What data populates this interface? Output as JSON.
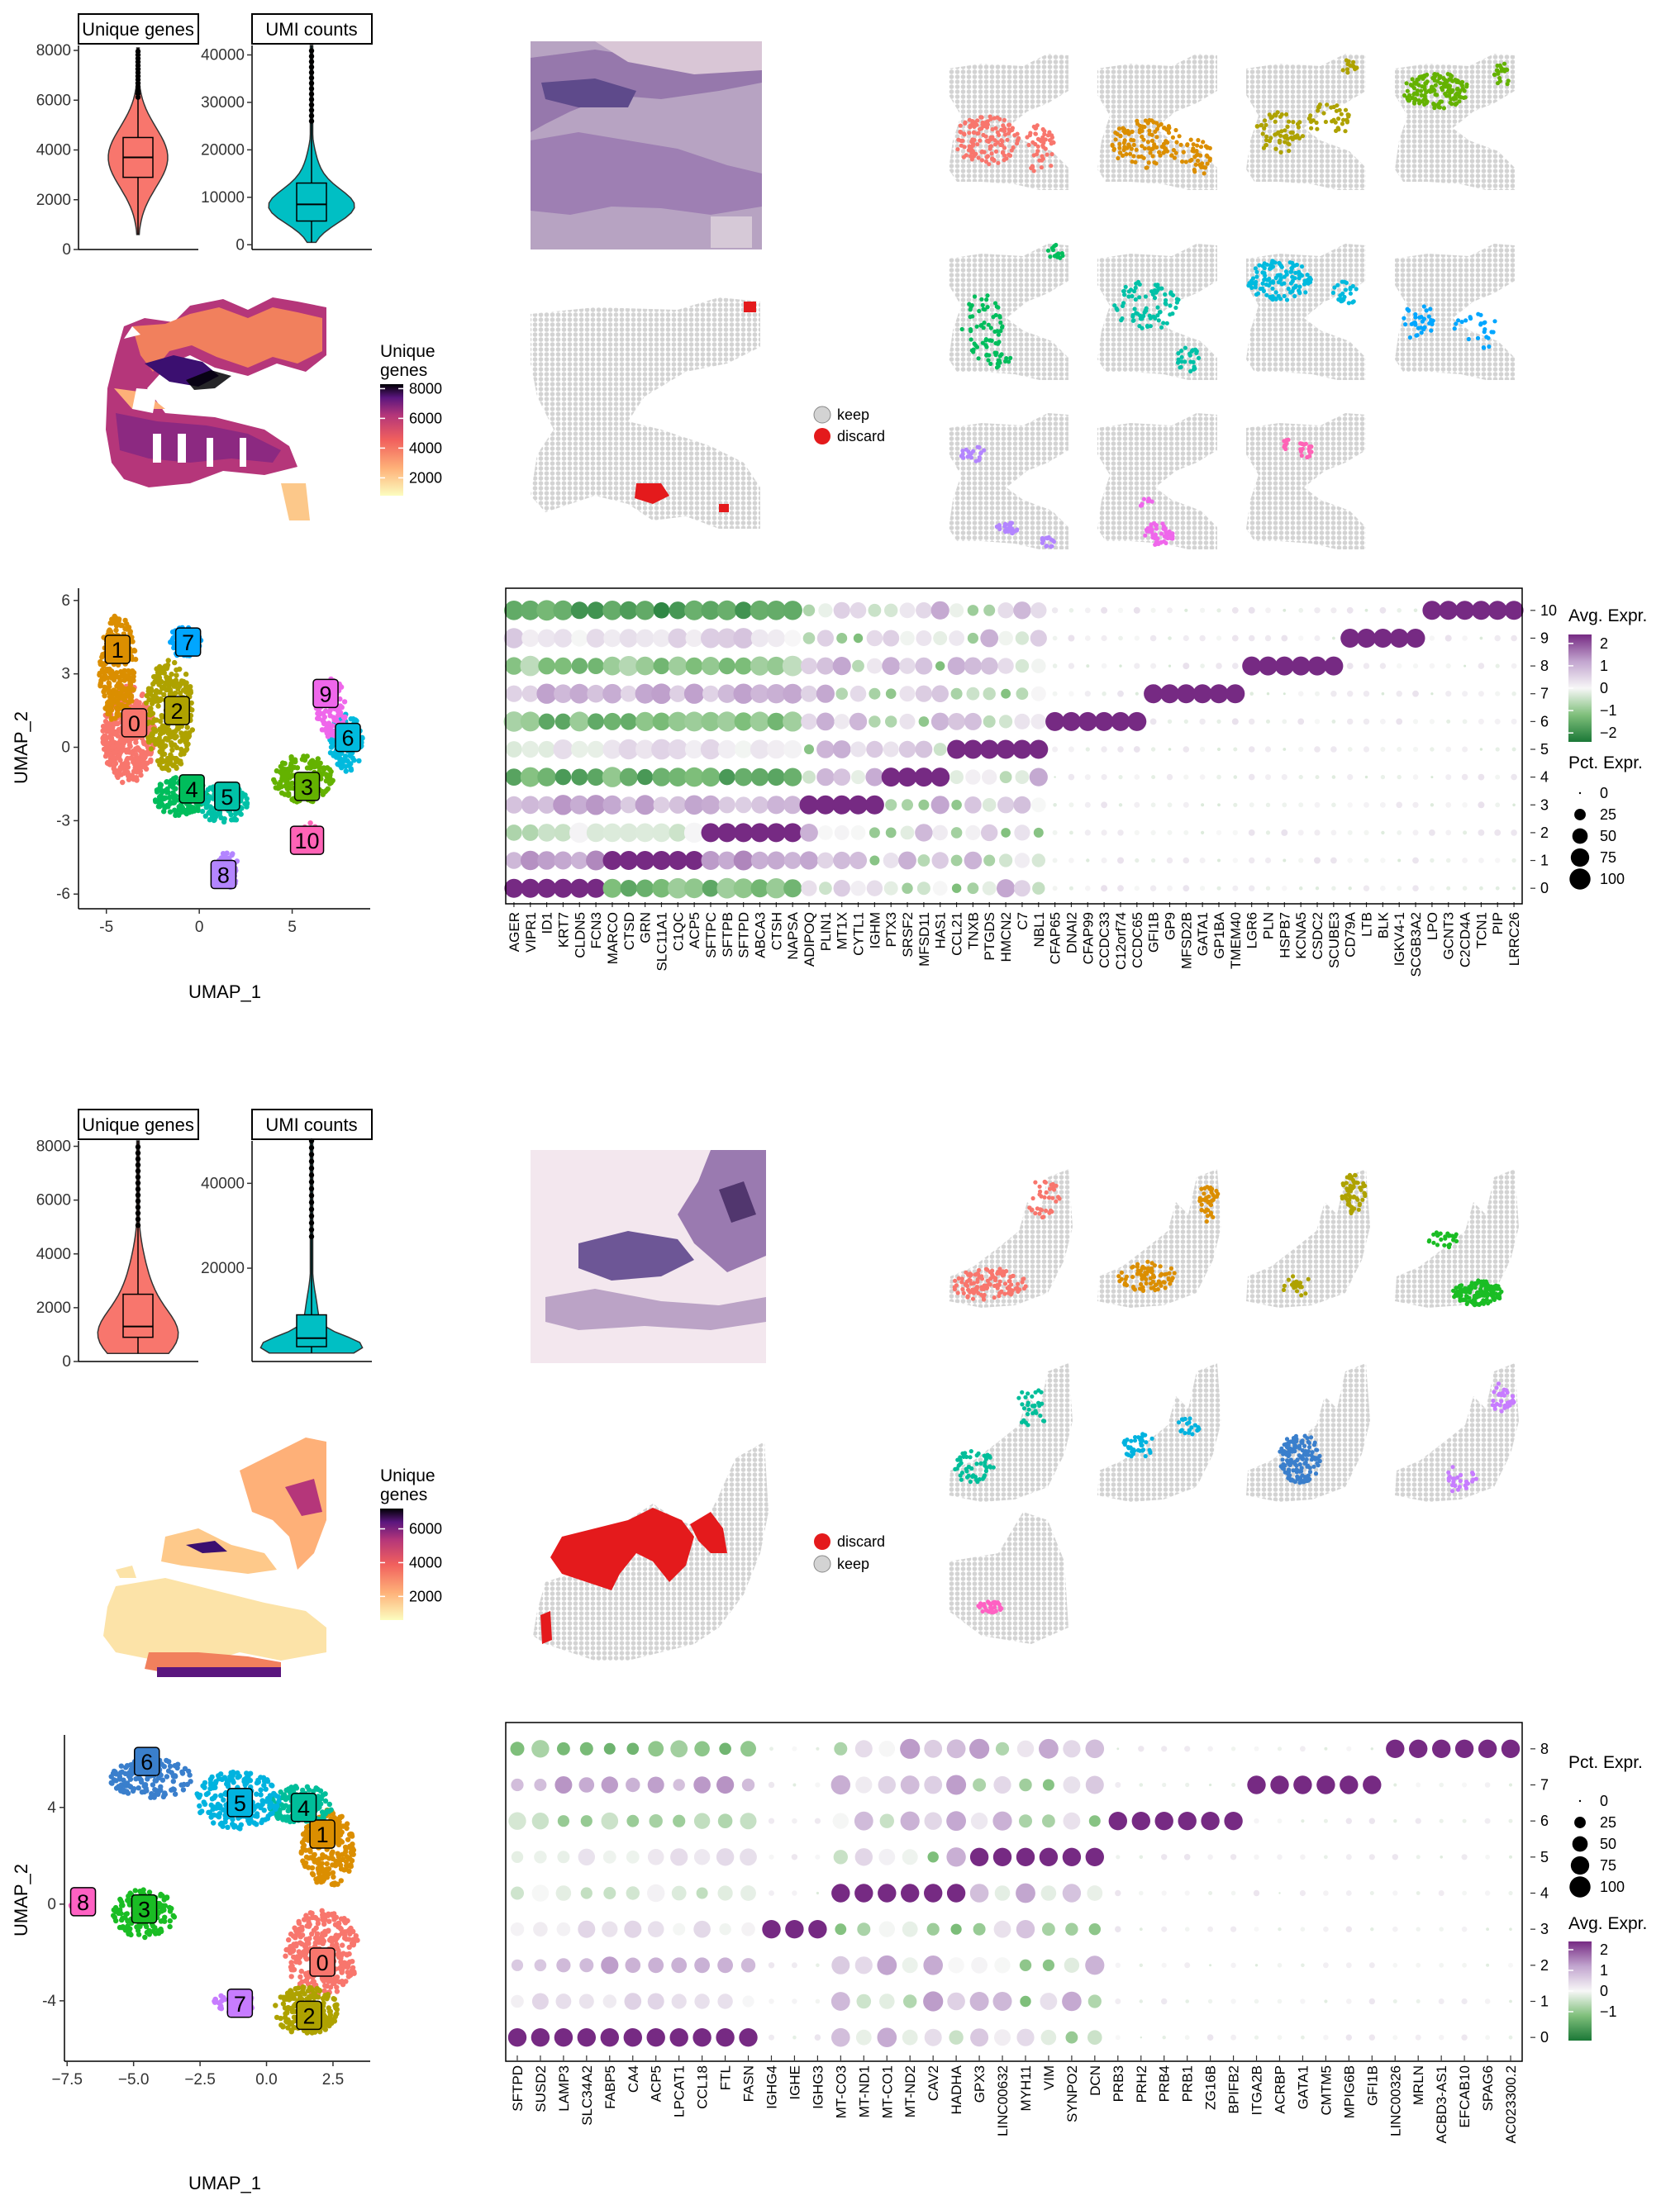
{
  "colors": {
    "cluster": [
      "#F8766D",
      "#DB8E00",
      "#AEA200",
      "#64B200",
      "#00BD5C",
      "#00C1A7",
      "#00BADE",
      "#00A6FF",
      "#B385FF",
      "#EF67EB",
      "#FF63B6"
    ],
    "cluster_b": [
      "#F8766D",
      "#DB8E00",
      "#AEA200",
      "#1ABD24",
      "#00BE9A",
      "#00B3DF",
      "#3A7FCC",
      "#C77CFF",
      "#FF61C3"
    ],
    "keep": "#D3D3D3",
    "discard": "#E41A1C"
  },
  "chart_data": [
    {
      "id": "A_violin",
      "type": "violin",
      "facets": [
        {
          "title": "Unique genes",
          "yticks": [
            0,
            2000,
            4000,
            6000,
            8000
          ],
          "ylim": [
            0,
            8200
          ],
          "median": 3700,
          "q1": 2900,
          "q3": 4500,
          "whisker": [
            600,
            8100
          ],
          "color": "#F8766D"
        },
        {
          "title": "UMI counts",
          "yticks": [
            0,
            10000,
            20000,
            30000,
            40000
          ],
          "ylim": [
            -1000,
            42000
          ],
          "median": 8500,
          "q1": 5000,
          "q3": 13000,
          "whisker": [
            500,
            42000
          ],
          "color": "#00BFC4"
        }
      ]
    },
    {
      "id": "A_spatial_genes",
      "type": "heatmap",
      "legend_title": [
        "Unique",
        "genes"
      ],
      "legend_ticks": [
        2000,
        4000,
        6000,
        8000
      ],
      "legend_range": [
        800,
        8300
      ]
    },
    {
      "id": "A_qc",
      "type": "scatter",
      "legend": [
        {
          "label": "keep",
          "color": "#D3D3D3"
        },
        {
          "label": "discard",
          "color": "#E41A1C"
        }
      ]
    },
    {
      "id": "A_umap",
      "type": "scatter",
      "xlabel": "UMAP_1",
      "ylabel": "UMAP_2",
      "xticks": [
        -5,
        0,
        5
      ],
      "yticks": [
        -6,
        -3,
        0,
        3,
        6
      ],
      "xlim": [
        -6.5,
        9.2
      ],
      "ylim": [
        -6.6,
        6.5
      ],
      "clusters": [
        {
          "id": "0",
          "x": -3.5,
          "y": 1.0
        },
        {
          "id": "1",
          "x": -4.4,
          "y": 4.0
        },
        {
          "id": "2",
          "x": -1.2,
          "y": 1.5
        },
        {
          "id": "3",
          "x": 5.8,
          "y": -1.6
        },
        {
          "id": "4",
          "x": -0.4,
          "y": -1.7
        },
        {
          "id": "5",
          "x": 1.5,
          "y": -2.0
        },
        {
          "id": "6",
          "x": 8.0,
          "y": 0.4
        },
        {
          "id": "7",
          "x": -0.6,
          "y": 4.3
        },
        {
          "id": "8",
          "x": 1.3,
          "y": -5.2
        },
        {
          "id": "9",
          "x": 6.8,
          "y": 2.2
        },
        {
          "id": "10",
          "x": 5.8,
          "y": -3.8
        }
      ]
    },
    {
      "id": "A_dotplot",
      "type": "dotplot",
      "genes": [
        "AGER",
        "VIPR1",
        "ID1",
        "KRT7",
        "CLDN5",
        "FCN3",
        "MARCO",
        "CTSD",
        "GRN",
        "SLC11A1",
        "C1QC",
        "ACP5",
        "SFTPC",
        "SFTPB",
        "SFTPD",
        "ABCA3",
        "CTSH",
        "NAPSA",
        "ADIPOQ",
        "PLIN1",
        "MT1X",
        "CYTL1",
        "IGHM",
        "PTX3",
        "SRSF2",
        "MFSD11",
        "HAS1",
        "CCL21",
        "TNXB",
        "PTGDS",
        "HMCN2",
        "C7",
        "NBL1",
        "CFAP65",
        "DNAI2",
        "CFAP99",
        "CCDC33",
        "C12orf74",
        "CCDC65",
        "GFI1B",
        "GP9",
        "MFSD2B",
        "GATA1",
        "GP1BA",
        "TMEM40",
        "LGR6",
        "PLN",
        "HSPB7",
        "KCNA5",
        "CSDC2",
        "SCUBE3",
        "CD79A",
        "LTB",
        "BLK",
        "IGKV4-1",
        "SCGB3A2",
        "LPO",
        "GCNT3",
        "C2CD4A",
        "TCN1",
        "PIP",
        "LRRC26"
      ],
      "idents": [
        "0",
        "1",
        "2",
        "3",
        "4",
        "5",
        "6",
        "7",
        "8",
        "9",
        "10"
      ],
      "legend_expr_title": "Avg. Expr.",
      "legend_expr_ticks": [
        "2",
        "1",
        "0",
        "−1",
        "−2"
      ],
      "legend_pct_title": "Pct. Expr.",
      "legend_pct_ticks": [
        "0",
        "25",
        "50",
        "75",
        "100"
      ]
    },
    {
      "id": "B_violin",
      "type": "violin",
      "facets": [
        {
          "title": "Unique genes",
          "yticks": [
            0,
            2000,
            4000,
            6000,
            8000
          ],
          "ylim": [
            0,
            8200
          ],
          "median": 1300,
          "q1": 900,
          "q3": 2500,
          "whisker": [
            300,
            8200
          ],
          "color": "#F8766D"
        },
        {
          "title": "UMI counts",
          "yticks": [
            20000,
            40000
          ],
          "ylim": [
            -2000,
            50000
          ],
          "median": 3500,
          "q1": 1500,
          "q3": 9000,
          "whisker": [
            0,
            50000
          ],
          "color": "#00BFC4"
        }
      ]
    },
    {
      "id": "B_spatial_genes",
      "type": "heatmap",
      "legend_title": [
        "Unique",
        "genes"
      ],
      "legend_ticks": [
        2000,
        4000,
        6000
      ],
      "legend_range": [
        600,
        7200
      ]
    },
    {
      "id": "B_qc",
      "type": "scatter",
      "legend": [
        {
          "label": "discard",
          "color": "#E41A1C"
        },
        {
          "label": "keep",
          "color": "#D3D3D3"
        }
      ]
    },
    {
      "id": "B_umap",
      "type": "scatter",
      "xlabel": "UMAP_1",
      "ylabel": "UMAP_2",
      "xticks": [
        "−7.5",
        "−5.0",
        "−2.5",
        "0.0",
        "2.5"
      ],
      "xtick_vals": [
        -7.5,
        -5.0,
        -2.5,
        0.0,
        2.5
      ],
      "yticks": [
        -4,
        0,
        4
      ],
      "xlim": [
        -7.6,
        3.9
      ],
      "ylim": [
        -6.5,
        7.0
      ],
      "clusters": [
        {
          "id": "0",
          "x": 2.1,
          "y": -2.4
        },
        {
          "id": "1",
          "x": 2.1,
          "y": 2.9
        },
        {
          "id": "2",
          "x": 1.6,
          "y": -4.6
        },
        {
          "id": "3",
          "x": -4.6,
          "y": -0.2
        },
        {
          "id": "4",
          "x": 1.4,
          "y": 4.0
        },
        {
          "id": "5",
          "x": -1.0,
          "y": 4.2
        },
        {
          "id": "6",
          "x": -4.5,
          "y": 5.9
        },
        {
          "id": "7",
          "x": -1.0,
          "y": -4.1
        },
        {
          "id": "8",
          "x": -6.9,
          "y": 0.1
        }
      ]
    },
    {
      "id": "B_dotplot",
      "type": "dotplot",
      "genes": [
        "SFTPD",
        "SUSD2",
        "LAMP3",
        "SLC34A2",
        "FABP5",
        "CA4",
        "ACP5",
        "LPCAT1",
        "CCL18",
        "FTL",
        "FASN",
        "IGHG4",
        "IGHE",
        "IGHG3",
        "MT-CO3",
        "MT-ND1",
        "MT-CO1",
        "MT-ND2",
        "CAV2",
        "HADHA",
        "GPX3",
        "LINC00632",
        "MYH11",
        "VIM",
        "SYNPO2",
        "DCN",
        "PRB3",
        "PRH2",
        "PRB4",
        "PRB1",
        "ZG16B",
        "BPIFB2",
        "ITGA2B",
        "ACRBP",
        "GATA1",
        "CMTM5",
        "MPIG6B",
        "GFI1B",
        "LINC00326",
        "MRLN",
        "ACBD3-AS1",
        "EFCAB10",
        "SPAG6",
        "AC023300.2"
      ],
      "idents": [
        "0",
        "1",
        "2",
        "3",
        "4",
        "5",
        "6",
        "7",
        "8"
      ],
      "legend_pct_title": "Pct. Expr.",
      "legend_pct_ticks": [
        "0",
        "25",
        "50",
        "75",
        "100"
      ],
      "legend_expr_title": "Avg. Expr.",
      "legend_expr_ticks": [
        "2",
        "1",
        "0",
        "−1"
      ]
    }
  ]
}
